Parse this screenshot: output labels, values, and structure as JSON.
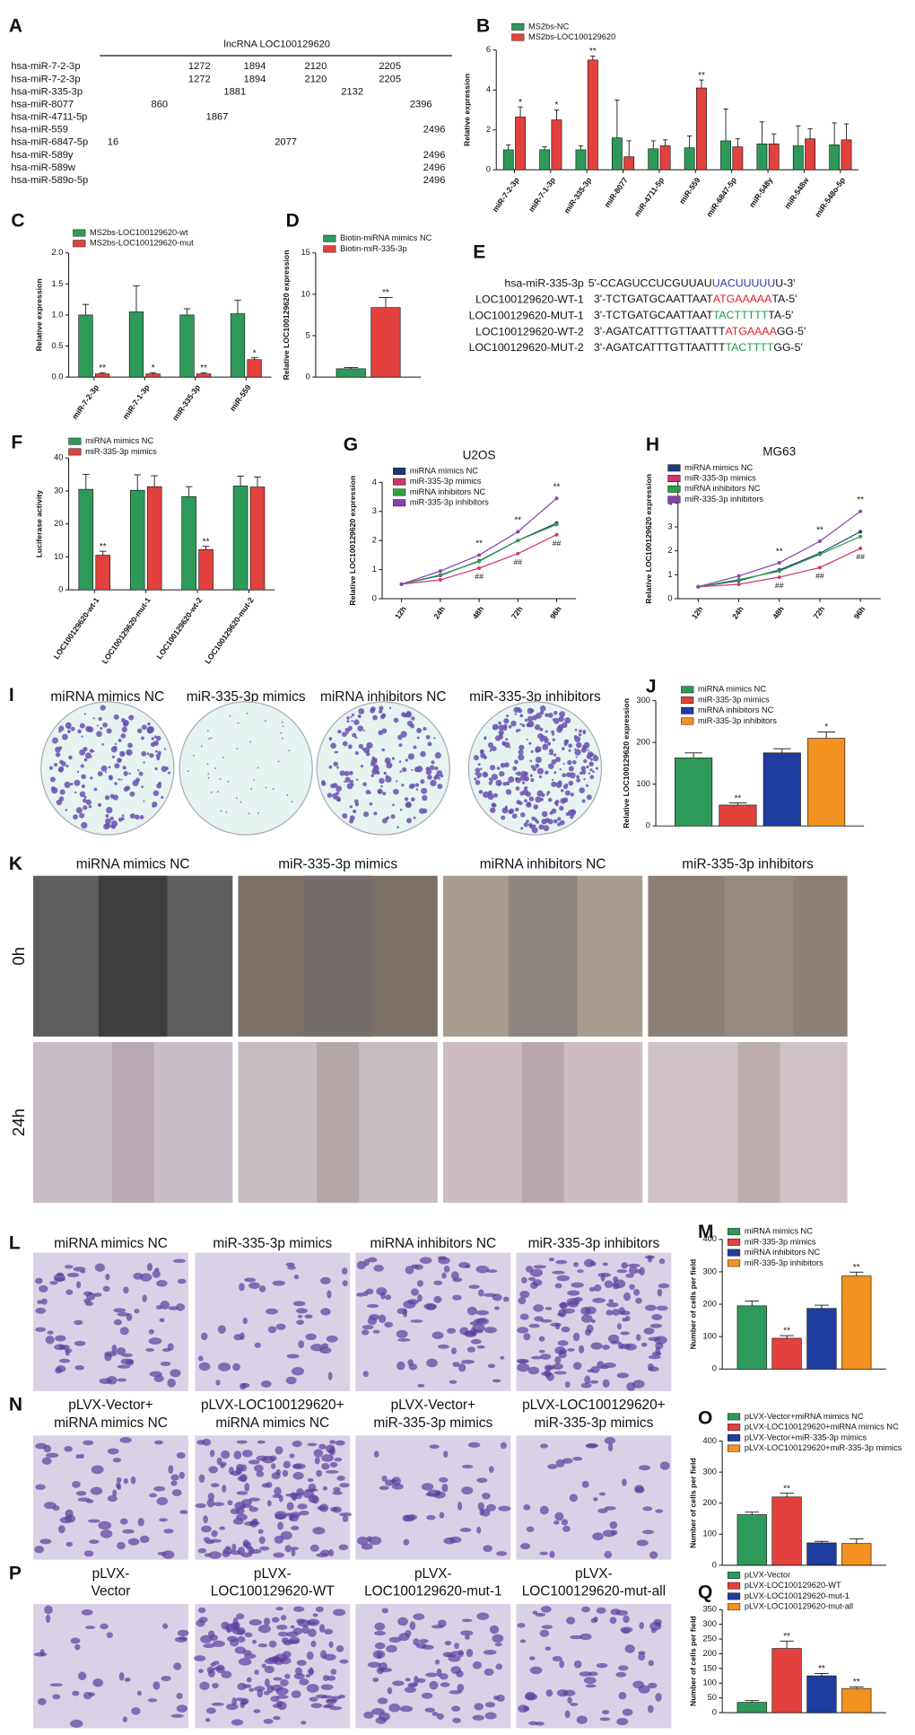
{
  "panel_a": {
    "panel": "A",
    "title": "lncRNA LOC100129620",
    "rows": [
      {
        "name": "hsa-miR-7-2-3p",
        "color": "#e0202a",
        "positions": [
          1272,
          1894,
          2120,
          2205
        ]
      },
      {
        "name": "hsa-miR-7-2-3p",
        "color": "#1e9a4a",
        "positions": [
          1272,
          1894,
          2120,
          2205
        ]
      },
      {
        "name": "hsa-miR-335-3p",
        "color": "#1aa3d6",
        "positions": [
          1881,
          2132
        ]
      },
      {
        "name": "hsa-miR-8077",
        "color": "#1f2f8f",
        "positions": [
          860,
          2396
        ]
      },
      {
        "name": "hsa-miR-4711-5p",
        "color": "#d6247a",
        "positions": [
          1867
        ]
      },
      {
        "name": "hsa-miR-559",
        "color": "#e0202a",
        "positions": [
          2496
        ]
      },
      {
        "name": "hsa-miR-6847-5p",
        "color": "#f08c1c",
        "positions": [
          16,
          2077
        ]
      },
      {
        "name": "hsa-miR-589y",
        "color": "#9ab81c",
        "positions": [
          2496
        ]
      },
      {
        "name": "hsa-miR-589w",
        "color": "#1e9a4a",
        "positions": [
          2496
        ]
      },
      {
        "name": "hsa-miR-589o-5p",
        "color": "#14a3a0",
        "positions": [
          2496
        ]
      }
    ]
  },
  "panel_e": {
    "panel": "E",
    "rows": [
      {
        "name": "hsa-miR-335-3p",
        "color": "#2a3aa8",
        "seq": [
          "5'-CCAGUCCUCGUUAU",
          "UACUUUUU",
          "U-3'"
        ]
      },
      {
        "name": "LOC100129620-WT-1",
        "color": "#e0202a",
        "seq": [
          "3'-TCTGATGCAATTAAT",
          "ATGAAAAA",
          "TA-5'"
        ]
      },
      {
        "name": "LOC100129620-MUT-1",
        "color": "#1e9a4a",
        "seq": [
          "3'-TCTGATGCAATTAAT",
          "TACTTTTT",
          "TA-5'"
        ]
      },
      {
        "name": "LOC100129620-WT-2",
        "color": "#e0202a",
        "seq": [
          "3'-AGATCATTTGTTAATTT",
          "ATGAAAA",
          "GG-5'"
        ]
      },
      {
        "name": "LOC100129620-MUT-2",
        "color": "#1e9a4a",
        "seq": [
          "3'-AGATCATTTGTTAATTT",
          "TACTTTT",
          "GG-5'"
        ]
      }
    ]
  },
  "image_panels": [
    {
      "panel": "I",
      "kind": "plate",
      "labels": [
        [
          "miRNA mimics NC"
        ],
        [
          "miR-335-3p mimics"
        ],
        [
          "miRNA inhibitors NC"
        ],
        [
          "miR-335-3p inhibitors"
        ]
      ]
    },
    {
      "panel": "K",
      "kind": "wound",
      "labels": [
        [
          "miRNA mimics NC"
        ],
        [
          "miR-335-3p mimics"
        ],
        [
          "miRNA inhibitors NC"
        ],
        [
          "miR-335-3p inhibitors"
        ]
      ],
      "rows": [
        "0h",
        "24h"
      ]
    },
    {
      "panel": "L",
      "kind": "transwell",
      "labels": [
        [
          "miRNA mimics NC"
        ],
        [
          "miR-335-3p mimics"
        ],
        [
          "miRNA inhibitors NC"
        ],
        [
          "miR-335-3p inhibitors"
        ]
      ]
    },
    {
      "panel": "N",
      "kind": "transwell",
      "labels": [
        [
          "pLVX-Vector+",
          "miRNA mimics NC"
        ],
        [
          "pLVX-LOC100129620+",
          "miRNA mimics NC"
        ],
        [
          "pLVX-Vector+",
          "miR-335-3p mimics"
        ],
        [
          "pLVX-LOC100129620+",
          "miR-335-3p mimics"
        ]
      ]
    },
    {
      "panel": "P",
      "kind": "transwell",
      "labels": [
        [
          "pLVX-",
          "Vector"
        ],
        [
          "pLVX-",
          "LOC100129620-WT"
        ],
        [
          "pLVX-",
          "LOC100129620-mut-1"
        ],
        [
          "pLVX-",
          "LOC100129620-mut-all"
        ]
      ]
    }
  ],
  "chart_data": [
    {
      "panel": "B",
      "type": "bar",
      "ylabel": "Relative expression",
      "categories": [
        "miR-7-2-3p",
        "miR-7-1-3p",
        "miR-335-3p",
        "miR-8077",
        "miR-4711-5p",
        "miR-559",
        "miR-6847-5p",
        "miR-548y",
        "miR-548w",
        "miR-548o-5p"
      ],
      "series": [
        {
          "name": "MS2bs-NC",
          "color": "#2e9a5a",
          "values": [
            1.0,
            1.0,
            1.0,
            1.6,
            1.05,
            1.1,
            1.45,
            1.3,
            1.2,
            1.25
          ],
          "errors": [
            0.25,
            0.15,
            0.2,
            1.9,
            0.4,
            0.6,
            1.6,
            1.1,
            1.0,
            1.1
          ],
          "significance": [
            null,
            null,
            null,
            null,
            null,
            null,
            null,
            null,
            null,
            null
          ]
        },
        {
          "name": "MS2bs-LOC100129620",
          "color": "#e2413e",
          "values": [
            2.65,
            2.5,
            5.5,
            0.65,
            1.2,
            4.1,
            1.15,
            1.3,
            1.55,
            1.5
          ],
          "errors": [
            0.5,
            0.5,
            0.2,
            0.8,
            0.3,
            0.4,
            0.4,
            0.5,
            0.5,
            0.8
          ],
          "significance": [
            "*",
            "*",
            "**",
            null,
            null,
            "**",
            null,
            null,
            null,
            null
          ]
        }
      ],
      "ylim": [
        0,
        6
      ],
      "yticks": [
        0,
        2,
        4,
        6
      ]
    },
    {
      "panel": "C",
      "type": "bar",
      "ylabel": "Relative expression",
      "categories": [
        "miR-7-2-3p",
        "miR-7-1-3p",
        "miR-335-3p",
        "miR-559"
      ],
      "series": [
        {
          "name": "MS2bs-LOC100129620-wt",
          "color": "#2e9a5a",
          "values": [
            1.0,
            1.05,
            1.0,
            1.02
          ],
          "errors": [
            0.17,
            0.42,
            0.1,
            0.22
          ],
          "significance": [
            null,
            null,
            null,
            null
          ]
        },
        {
          "name": "MS2bs-LOC100129620-mut",
          "color": "#e2413e",
          "values": [
            0.05,
            0.05,
            0.05,
            0.28
          ],
          "errors": [
            0.02,
            0.02,
            0.02,
            0.03
          ],
          "significance": [
            "**",
            "*",
            "**",
            "*"
          ]
        }
      ],
      "ylim": [
        0,
        2
      ],
      "yticks": [
        {
          "value": 0,
          "label": "0.0"
        },
        {
          "value": 0.5,
          "label": "0.5"
        },
        {
          "value": 1,
          "label": "1.0"
        },
        {
          "value": 1.5,
          "label": "1.5"
        },
        {
          "value": 2,
          "label": "2.0"
        }
      ]
    },
    {
      "panel": "D",
      "type": "bar",
      "ylabel": "Relative LOC100129620 expression",
      "categories": [
        null
      ],
      "series": [
        {
          "name": "Biotin-miRNA mimics NC",
          "color": "#2e9a5a",
          "values": [
            1.0
          ],
          "errors": [
            0.15
          ],
          "significance": [
            null
          ]
        },
        {
          "name": "Biotin-miR-335-3p",
          "color": "#e2413e",
          "values": [
            8.4
          ],
          "errors": [
            1.2
          ],
          "significance": [
            "**"
          ]
        }
      ],
      "ylim": [
        0,
        15
      ],
      "yticks": [
        0,
        5,
        10,
        15
      ]
    },
    {
      "panel": "F",
      "type": "bar",
      "ylabel": "Luciferase activity",
      "categories": [
        "LOC100129620-wt-1",
        "LOC100129620-mut-1",
        "LOC100129620-wt-2",
        "LOC100129620-mut-2"
      ],
      "series": [
        {
          "name": "miRNA mimics NC",
          "color": "#2e9a5a",
          "values": [
            30.5,
            30.2,
            28.3,
            31.5
          ],
          "errors": [
            4.5,
            4.7,
            3,
            3
          ],
          "significance": [
            null,
            null,
            null,
            null
          ]
        },
        {
          "name": "miR-335-3p mimics",
          "color": "#e2413e",
          "values": [
            10.5,
            31.3,
            12.2,
            31.2
          ],
          "errors": [
            1.2,
            3.3,
            1,
            3
          ],
          "significance": [
            "**",
            null,
            "**",
            null
          ]
        }
      ],
      "ylim": [
        0,
        40
      ],
      "yticks": [
        0,
        10,
        20,
        30,
        40
      ]
    },
    {
      "panel": "G",
      "type": "line",
      "title": "U2OS",
      "ylabel": "Relative LOC100129620 expression",
      "categories": [
        "12h",
        "24h",
        "48h",
        "72h",
        "96h"
      ],
      "series": [
        {
          "name": "miRNA mimics NC",
          "color": "#1f3a7a",
          "values": [
            0.5,
            0.8,
            1.3,
            2.0,
            2.6
          ]
        },
        {
          "name": "miR-335-3p mimics",
          "color": "#d6336c",
          "values": [
            0.5,
            0.65,
            1.05,
            1.55,
            2.2
          ]
        },
        {
          "name": "miRNA inhibitors NC",
          "color": "#2ea043",
          "values": [
            0.5,
            0.82,
            1.28,
            2.0,
            2.55
          ]
        },
        {
          "name": "miR-335-3p inhibitors",
          "color": "#8a3fb0",
          "values": [
            0.5,
            0.95,
            1.5,
            2.3,
            3.45
          ]
        }
      ],
      "annotations_above": [
        null,
        null,
        "**",
        "**",
        "**"
      ],
      "annotations_below": [
        null,
        null,
        "##",
        "##",
        "##"
      ],
      "ylim": [
        0,
        4
      ],
      "yticks": [
        0,
        1,
        2,
        3,
        4
      ]
    },
    {
      "panel": "H",
      "type": "line",
      "title": "MG63",
      "ylabel": "Relative LOC100129620 expression",
      "categories": [
        "12h",
        "24h",
        "48h",
        "72h",
        "96h"
      ],
      "series": [
        {
          "name": "miRNA mimics NC",
          "color": "#1f3a7a",
          "values": [
            0.5,
            0.75,
            1.2,
            1.9,
            2.8
          ]
        },
        {
          "name": "miR-335-3p mimics",
          "color": "#d6336c",
          "values": [
            0.5,
            0.6,
            0.9,
            1.3,
            2.1
          ]
        },
        {
          "name": "miRNA inhibitors NC",
          "color": "#2ea043",
          "values": [
            0.5,
            0.8,
            1.15,
            1.85,
            2.6
          ]
        },
        {
          "name": "miR-335-3p inhibitors",
          "color": "#8a3fb0",
          "values": [
            0.5,
            0.95,
            1.5,
            2.4,
            3.65
          ]
        }
      ],
      "annotations_above": [
        null,
        null,
        "**",
        "**",
        "**"
      ],
      "annotations_below": [
        null,
        null,
        "##",
        "##",
        "##"
      ],
      "ylim": [
        0,
        5
      ],
      "yticks": [
        0,
        1,
        2,
        3,
        4,
        5
      ]
    },
    {
      "panel": "J",
      "type": "bar",
      "ylabel": "Relative LOC100129620 expression",
      "categories": [
        null
      ],
      "series": [
        {
          "name": "miRNA mimics NC",
          "color": "#2e9a5a",
          "values": [
            163
          ],
          "errors": [
            12
          ],
          "significance": [
            null
          ]
        },
        {
          "name": "miR-335-3p mimics",
          "color": "#e2413e",
          "values": [
            50
          ],
          "errors": [
            5
          ],
          "significance": [
            "**"
          ]
        },
        {
          "name": "miRNA inhibitors NC",
          "color": "#1f3d9e",
          "values": [
            175
          ],
          "errors": [
            10
          ],
          "significance": [
            null
          ]
        },
        {
          "name": "miR-335-3p inhibitors",
          "color": "#f39221",
          "values": [
            210
          ],
          "errors": [
            15
          ],
          "significance": [
            "*"
          ]
        }
      ],
      "ylim": [
        0,
        300
      ],
      "yticks": [
        0,
        100,
        200,
        300
      ]
    },
    {
      "panel": "M",
      "type": "bar",
      "ylabel": "Number of cells per field",
      "categories": [
        null
      ],
      "series": [
        {
          "name": "miRNA mimics NC",
          "color": "#2e9a5a",
          "values": [
            195
          ],
          "errors": [
            15
          ],
          "significance": [
            null
          ]
        },
        {
          "name": "miR-335-3p mimics",
          "color": "#e2413e",
          "values": [
            95
          ],
          "errors": [
            8
          ],
          "significance": [
            "**"
          ]
        },
        {
          "name": "miRNA inhibitors NC",
          "color": "#1f3d9e",
          "values": [
            187
          ],
          "errors": [
            10
          ],
          "significance": [
            null
          ]
        },
        {
          "name": "miR-335-3p inhibitors",
          "color": "#f39221",
          "values": [
            287
          ],
          "errors": [
            12
          ],
          "significance": [
            "**"
          ]
        }
      ],
      "ylim": [
        0,
        400
      ],
      "yticks": [
        0,
        100,
        200,
        300,
        400
      ]
    },
    {
      "panel": "O",
      "type": "bar",
      "ylabel": "Number of cells per field",
      "categories": [
        null
      ],
      "series": [
        {
          "name": "pLVX-Vector+miRNA mimics NC",
          "color": "#2e9a5a",
          "values": [
            163
          ],
          "errors": [
            8
          ],
          "significance": [
            null
          ]
        },
        {
          "name": "pLVX-LOC100129620+miRNA mimics NC",
          "color": "#e2413e",
          "values": [
            220
          ],
          "errors": [
            12
          ],
          "significance": [
            "**"
          ]
        },
        {
          "name": "pLVX-Vector+miR-335-3p mimics",
          "color": "#1f3d9e",
          "values": [
            72
          ],
          "errors": [
            5
          ],
          "significance": [
            null
          ]
        },
        {
          "name": "pLVX-LOC100129620+miR-335-3p mimics",
          "color": "#f39221",
          "values": [
            70
          ],
          "errors": [
            15
          ],
          "significance": [
            null
          ]
        }
      ],
      "ylim": [
        0,
        400
      ],
      "yticks": [
        0,
        100,
        200,
        300,
        400
      ]
    },
    {
      "panel": "Q",
      "type": "bar",
      "ylabel": "Number of cells per field",
      "categories": [
        null
      ],
      "series": [
        {
          "name": "pLVX-Vector",
          "color": "#2e9a5a",
          "values": [
            35
          ],
          "errors": [
            6
          ],
          "significance": [
            null
          ]
        },
        {
          "name": "pLVX-LOC100129620-WT",
          "color": "#e2413e",
          "values": [
            218
          ],
          "errors": [
            25
          ],
          "significance": [
            "**"
          ]
        },
        {
          "name": "pLVX-LOC100129620-mut-1",
          "color": "#1f3d9e",
          "values": [
            125
          ],
          "errors": [
            8
          ],
          "significance": [
            "**"
          ]
        },
        {
          "name": "pLVX-LOC100129620-mut-all",
          "color": "#f39221",
          "values": [
            82
          ],
          "errors": [
            5
          ],
          "significance": [
            "**"
          ]
        }
      ],
      "ylim": [
        0,
        350
      ],
      "yticks": [
        0,
        50,
        100,
        150,
        200,
        250,
        300,
        350
      ]
    }
  ]
}
